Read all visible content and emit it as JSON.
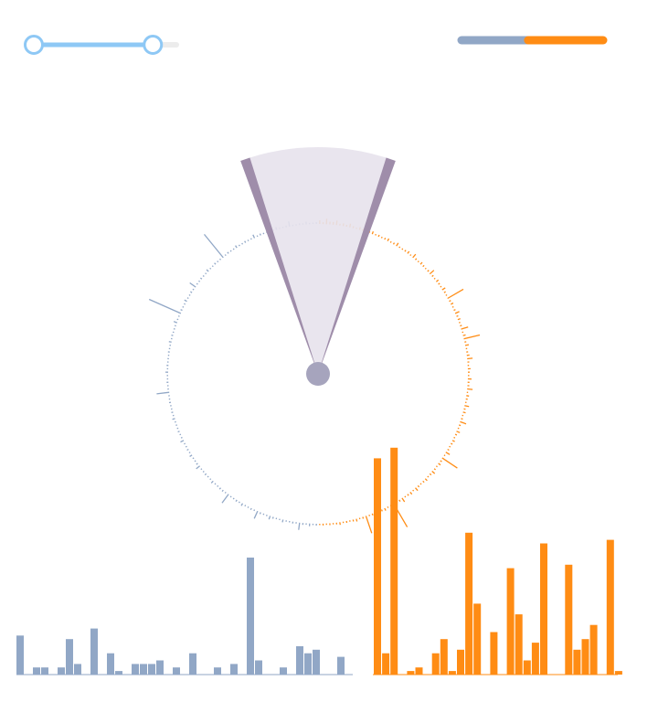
{
  "controls": {
    "range_slider": {
      "start": 0.0,
      "end": 0.88
    },
    "split_bar": {
      "left_fraction": 0.47
    }
  },
  "colors": {
    "slider": "#8ec8f5",
    "track_rest": "#ececec",
    "blue": "#91a7c6",
    "orange": "#ff8c14",
    "wedge_fill": "#e7e2ec",
    "wedge_edge": "#9f8daa",
    "hub": "#a6a4bd"
  },
  "radial": {
    "wedge": {
      "start_deg": -20,
      "end_deg": 20
    },
    "blue_spikes": [
      2,
      1,
      3,
      1,
      2,
      8,
      1,
      2,
      1,
      1,
      3,
      1,
      1,
      2,
      4,
      1,
      1,
      2,
      9,
      1,
      2,
      1,
      1,
      3,
      1,
      2,
      1,
      1,
      12,
      1,
      2,
      2,
      1,
      1,
      3,
      1,
      1,
      2,
      1,
      1,
      5,
      2,
      1,
      1,
      3,
      1,
      2,
      1,
      1,
      4,
      1,
      1,
      2,
      1,
      1,
      1,
      3,
      1,
      2,
      1,
      1,
      2,
      1,
      1,
      14,
      1,
      1,
      2,
      1,
      1,
      3,
      1,
      2,
      1,
      1,
      1,
      2,
      1,
      1,
      3,
      1,
      2,
      1,
      1,
      1,
      4,
      1,
      1,
      38,
      2,
      1,
      1,
      3,
      1,
      1,
      2,
      1,
      8,
      1,
      1,
      2,
      1,
      1,
      3,
      1,
      1,
      2,
      1,
      1,
      33,
      1,
      2,
      1,
      1,
      3,
      1,
      1,
      2,
      1,
      1,
      4,
      1,
      2,
      1,
      1,
      2,
      1,
      3,
      1,
      1,
      2,
      6,
      1,
      1,
      2,
      1,
      3,
      1,
      1,
      2
    ],
    "orange_spikes": [
      4,
      2,
      6,
      3,
      3,
      5,
      2,
      3,
      2,
      4,
      2,
      1,
      3,
      2,
      1,
      2,
      3,
      1,
      2,
      1,
      2,
      3,
      1,
      2,
      4,
      1,
      1,
      2,
      3,
      1,
      5,
      2,
      1,
      3,
      2,
      1,
      2,
      6,
      2,
      1,
      3,
      2,
      1,
      4,
      2,
      1,
      20,
      2,
      3,
      1,
      2,
      5,
      2,
      3,
      1,
      2,
      8,
      1,
      3,
      18,
      2,
      4,
      1,
      2,
      3,
      6,
      2,
      1,
      3,
      2,
      1,
      4,
      2,
      2,
      6,
      1,
      3,
      2,
      1,
      5,
      2,
      3,
      1,
      2,
      7,
      2,
      1,
      4,
      2,
      1,
      3,
      2,
      1,
      2,
      5,
      1,
      20,
      2,
      3,
      1,
      2,
      4,
      2,
      1,
      3,
      2,
      1,
      2,
      4,
      1,
      3,
      2,
      1,
      5,
      2,
      1,
      30,
      2,
      1,
      3,
      2,
      1,
      4,
      2,
      1,
      20,
      2,
      1,
      3,
      2,
      1,
      2,
      1,
      3,
      2,
      1,
      2,
      1,
      2,
      1
    ]
  },
  "histogram": {
    "blue_values": [
      11,
      0,
      2,
      2,
      0,
      2,
      10,
      3,
      0,
      13,
      0,
      6,
      1,
      0,
      3,
      3,
      3,
      4,
      0,
      2,
      0,
      6,
      0,
      0,
      2,
      0,
      3,
      0,
      33,
      4,
      0,
      0,
      2,
      0,
      8,
      6,
      7,
      0,
      0,
      5
    ],
    "orange_values": [
      61,
      6,
      64,
      0,
      1,
      2,
      0,
      6,
      10,
      1,
      7,
      40,
      20,
      0,
      12,
      0,
      30,
      17,
      4,
      9,
      37,
      0,
      0,
      31,
      7,
      10,
      14,
      0,
      38,
      1
    ]
  }
}
